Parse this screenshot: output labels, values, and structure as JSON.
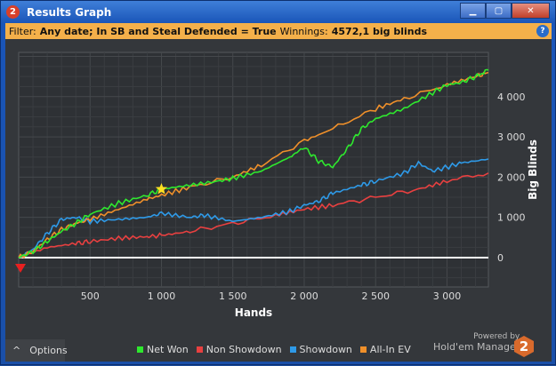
{
  "window": {
    "title": "Results Graph",
    "icon": "hm2-logo-icon",
    "buttons": [
      "minimize",
      "maximize",
      "close"
    ]
  },
  "filter": {
    "label": "Filter:",
    "value": "Any date; In SB and Steal Defended = True",
    "winnings_label": "Winnings:",
    "winnings_value": "4572,1 big blinds"
  },
  "options_label": "Options",
  "powered": {
    "line1": "Powered by",
    "line2": "Hold'em Manager",
    "badge": "2"
  },
  "chart_data": {
    "type": "line",
    "xlabel": "Hands",
    "ylabel": "Big Blinds",
    "xlim": [
      0,
      3290
    ],
    "ylim": [
      -730,
      5100
    ],
    "xticks": [
      500,
      1000,
      1500,
      2000,
      2500,
      3000
    ],
    "xtick_labels": [
      "500",
      "1 000",
      "1 500",
      "2 000",
      "2 500",
      "3 000"
    ],
    "yticks": [
      0,
      1000,
      2000,
      3000,
      4000
    ],
    "ytick_labels": [
      "0",
      "1 000",
      "2 000",
      "3 000",
      "4 000"
    ],
    "grid": true,
    "legend_position": "bottom",
    "series": [
      {
        "name": "Net Won",
        "color": "#2ee82e",
        "x": [
          0,
          100,
          200,
          300,
          400,
          500,
          700,
          900,
          1000,
          1200,
          1400,
          1500,
          1700,
          1900,
          2000,
          2100,
          2200,
          2300,
          2400,
          2500,
          2700,
          2900,
          3000,
          3100,
          3200,
          3290
        ],
        "y": [
          0,
          150,
          400,
          650,
          850,
          1080,
          1350,
          1550,
          1700,
          1800,
          1900,
          1970,
          2150,
          2500,
          2740,
          2400,
          2250,
          2700,
          3200,
          3450,
          3700,
          4100,
          4290,
          4350,
          4500,
          4660
        ]
      },
      {
        "name": "Non Showdown",
        "color": "#e84040",
        "x": [
          0,
          200,
          400,
          500,
          700,
          900,
          1000,
          1200,
          1500,
          1800,
          2000,
          2200,
          2500,
          2800,
          3000,
          3290
        ],
        "y": [
          0,
          250,
          350,
          400,
          480,
          520,
          550,
          650,
          850,
          1050,
          1200,
          1300,
          1500,
          1700,
          1900,
          2100
        ]
      },
      {
        "name": "Showdown",
        "color": "#2e9ae8",
        "x": [
          0,
          100,
          200,
          300,
          400,
          500,
          700,
          900,
          1000,
          1200,
          1300,
          1500,
          1700,
          1900,
          2000,
          2100,
          2200,
          2400,
          2500,
          2700,
          2800,
          2900,
          3000,
          3100,
          3290
        ],
        "y": [
          0,
          200,
          600,
          950,
          1000,
          900,
          950,
          1000,
          1100,
          1000,
          1050,
          900,
          1000,
          1150,
          1300,
          1400,
          1600,
          1800,
          1900,
          2100,
          2350,
          2150,
          2250,
          2350,
          2450
        ]
      },
      {
        "name": "All-In EV",
        "color": "#f0902a",
        "x": [
          0,
          100,
          200,
          300,
          400,
          500,
          700,
          900,
          1000,
          1200,
          1500,
          1700,
          2000,
          2200,
          2500,
          2700,
          3000,
          3200,
          3290
        ],
        "y": [
          0,
          150,
          450,
          700,
          850,
          950,
          1200,
          1450,
          1550,
          1750,
          2000,
          2300,
          2900,
          3200,
          3700,
          3950,
          4300,
          4500,
          4600
        ]
      }
    ],
    "markers": [
      {
        "type": "star",
        "x": 1000,
        "y": 1700,
        "color": "#ffe020"
      },
      {
        "type": "triangle-down",
        "x": 0,
        "y": -200,
        "color": "#e82020"
      }
    ]
  }
}
